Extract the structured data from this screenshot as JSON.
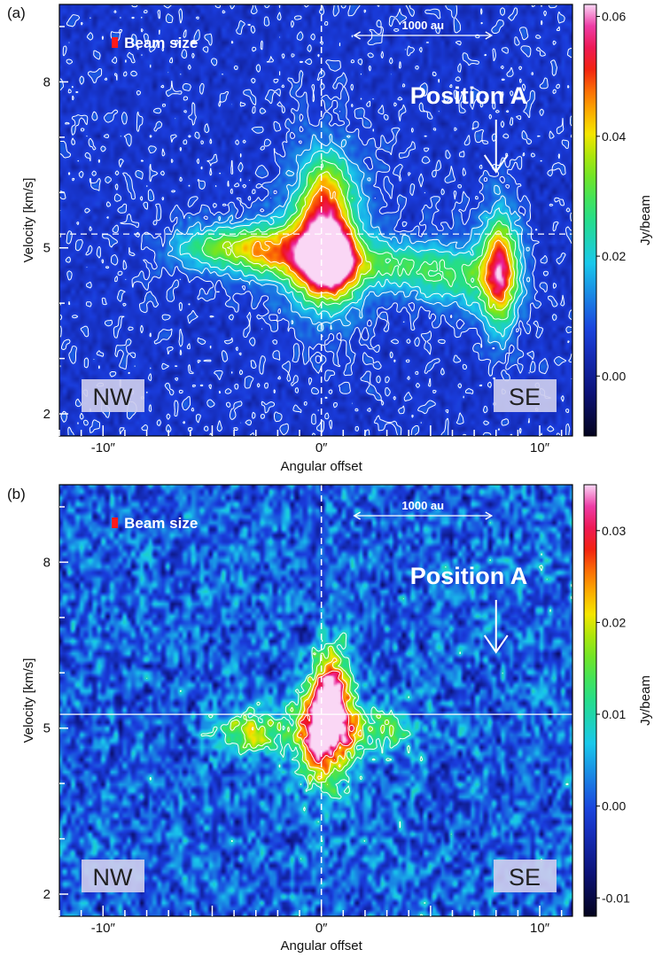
{
  "chart_data": [
    {
      "panel_label": "(a)",
      "type": "heatmap",
      "xlabel": "Angular offset",
      "ylabel": "Velocity [km/s]",
      "xlim": [
        -12,
        11.5
      ],
      "ylim": [
        1.6,
        9.4
      ],
      "x_ticks": [
        -10,
        0,
        10
      ],
      "x_tick_labels": [
        "-10″",
        "0″",
        "10″"
      ],
      "y_ticks": [
        2,
        5,
        8
      ],
      "y_tick_labels": [
        "2",
        "5",
        "8"
      ],
      "colorbar": {
        "label": "Jy/beam",
        "min": -0.01,
        "max": 0.062,
        "ticks": [
          0.0,
          0.02,
          0.04,
          0.06
        ],
        "tick_labels": [
          "0.00",
          "0.02",
          "0.04",
          "0.06"
        ]
      },
      "annotations": {
        "beam_label": "Beam size",
        "scale_bar_label": "1000 au",
        "scale_bar_x": [
          1.5,
          7.8
        ],
        "position_label": "Position A",
        "position_arrow_x": 8.0,
        "left_box": "NW",
        "right_box": "SE"
      },
      "reference_lines": {
        "x": 0.0,
        "y": 5.25
      },
      "emission": {
        "background_level": 0.006,
        "noise_level": 0.004,
        "components": [
          {
            "x": -5.0,
            "v": 5.0,
            "sx": 1.3,
            "sv": 0.28,
            "amp": 0.022
          },
          {
            "x": -2.6,
            "v": 4.95,
            "sx": 1.2,
            "sv": 0.32,
            "amp": 0.032
          },
          {
            "x": -0.3,
            "v": 4.85,
            "sx": 1.0,
            "sv": 0.5,
            "amp": 0.042
          },
          {
            "x": 0.6,
            "v": 4.75,
            "sx": 0.8,
            "sv": 0.45,
            "amp": 0.04
          },
          {
            "x": 0.2,
            "v": 5.9,
            "sx": 0.8,
            "sv": 0.55,
            "amp": 0.03
          },
          {
            "x": 0.3,
            "v": 5.2,
            "sx": 1.5,
            "sv": 1.1,
            "amp": 0.012
          },
          {
            "x": 3.0,
            "v": 4.7,
            "sx": 1.6,
            "sv": 0.3,
            "amp": 0.018
          },
          {
            "x": 5.5,
            "v": 4.5,
            "sx": 1.3,
            "sv": 0.35,
            "amp": 0.016
          },
          {
            "x": 8.2,
            "v": 4.6,
            "sx": 0.55,
            "sv": 0.7,
            "amp": 0.042
          },
          {
            "x": 7.5,
            "v": 4.5,
            "sx": 1.1,
            "sv": 0.5,
            "amp": 0.014
          }
        ],
        "contour_levels": [
          0.008,
          0.014,
          0.02,
          0.028,
          0.036,
          0.045
        ]
      }
    },
    {
      "panel_label": "(b)",
      "type": "heatmap",
      "xlabel": "Angular offset",
      "ylabel": "Velocity [km/s]",
      "xlim": [
        -12,
        11.5
      ],
      "ylim": [
        1.6,
        9.4
      ],
      "x_ticks": [
        -10,
        0,
        10
      ],
      "x_tick_labels": [
        "-10″",
        "0″",
        "10″"
      ],
      "y_ticks": [
        2,
        5,
        8
      ],
      "y_tick_labels": [
        "2",
        "5",
        "8"
      ],
      "colorbar": {
        "label": "Jy/beam",
        "min": -0.012,
        "max": 0.035,
        "ticks": [
          -0.01,
          0.0,
          0.01,
          0.02,
          0.03
        ],
        "tick_labels": [
          "-0.01",
          "0.00",
          "0.01",
          "0.02",
          "0.03"
        ]
      },
      "annotations": {
        "beam_label": "Beam size",
        "scale_bar_label": "1000 au",
        "scale_bar_x": [
          1.5,
          7.8
        ],
        "position_label": "Position A",
        "position_arrow_x": 8.0,
        "left_box": "NW",
        "right_box": "SE"
      },
      "reference_lines": {
        "x": 0.0,
        "y": 5.25
      },
      "emission": {
        "background_level": 0.001,
        "noise_level": 0.007,
        "components": [
          {
            "x": -3.2,
            "v": 4.95,
            "sx": 1.1,
            "sv": 0.28,
            "amp": 0.018
          },
          {
            "x": 0.0,
            "v": 5.0,
            "sx": 0.8,
            "sv": 0.5,
            "amp": 0.028
          },
          {
            "x": 0.5,
            "v": 5.7,
            "sx": 0.55,
            "sv": 0.55,
            "amp": 0.03
          },
          {
            "x": 2.5,
            "v": 4.95,
            "sx": 1.2,
            "sv": 0.28,
            "amp": 0.014
          },
          {
            "x": 0.2,
            "v": 4.6,
            "sx": 1.0,
            "sv": 0.8,
            "amp": 0.012
          }
        ],
        "contour_levels": [
          0.01,
          0.016,
          0.022,
          0.028
        ]
      }
    }
  ]
}
